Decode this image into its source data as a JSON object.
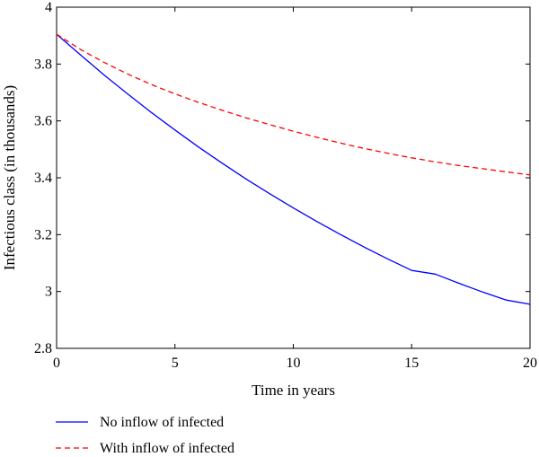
{
  "chart_data": {
    "type": "line",
    "xlabel": "Time in years",
    "ylabel": "Infectious class (in thousands)",
    "xlim": [
      0,
      20
    ],
    "ylim": [
      2.8,
      4
    ],
    "xticks": [
      0,
      5,
      10,
      15,
      20
    ],
    "xtick_labels": [
      "0",
      "5",
      "10",
      "15",
      "20"
    ],
    "yticks": [
      2.8,
      3,
      3.2,
      3.4,
      3.6,
      3.8,
      4
    ],
    "ytick_labels": [
      "2.8",
      "3",
      "3.2",
      "3.4",
      "3.6",
      "3.8",
      "4"
    ],
    "grid": false,
    "legend_position": "below",
    "series": [
      {
        "name": "No inflow of infected",
        "color": "#0000ff",
        "dash": "solid",
        "x": [
          0,
          1,
          2,
          3,
          4,
          5,
          6,
          7,
          8,
          9,
          10,
          11,
          12,
          13,
          14,
          15,
          16,
          17,
          18,
          19,
          20
        ],
        "values": [
          3.905,
          3.833,
          3.762,
          3.695,
          3.63,
          3.568,
          3.508,
          3.451,
          3.396,
          3.344,
          3.294,
          3.246,
          3.2,
          3.156,
          3.114,
          3.074,
          3.061,
          3.029,
          2.998,
          2.97,
          2.955
        ]
      },
      {
        "name": "With inflow of infected",
        "color": "#ff0000",
        "dash": "dashed",
        "x": [
          0,
          1,
          2,
          3,
          4,
          5,
          6,
          7,
          8,
          9,
          10,
          11,
          12,
          13,
          14,
          15,
          16,
          17,
          18,
          19,
          20
        ],
        "values": [
          3.905,
          3.852,
          3.806,
          3.765,
          3.728,
          3.695,
          3.665,
          3.637,
          3.611,
          3.587,
          3.564,
          3.542,
          3.522,
          3.503,
          3.486,
          3.47,
          3.456,
          3.443,
          3.432,
          3.421,
          3.41
        ]
      }
    ]
  }
}
